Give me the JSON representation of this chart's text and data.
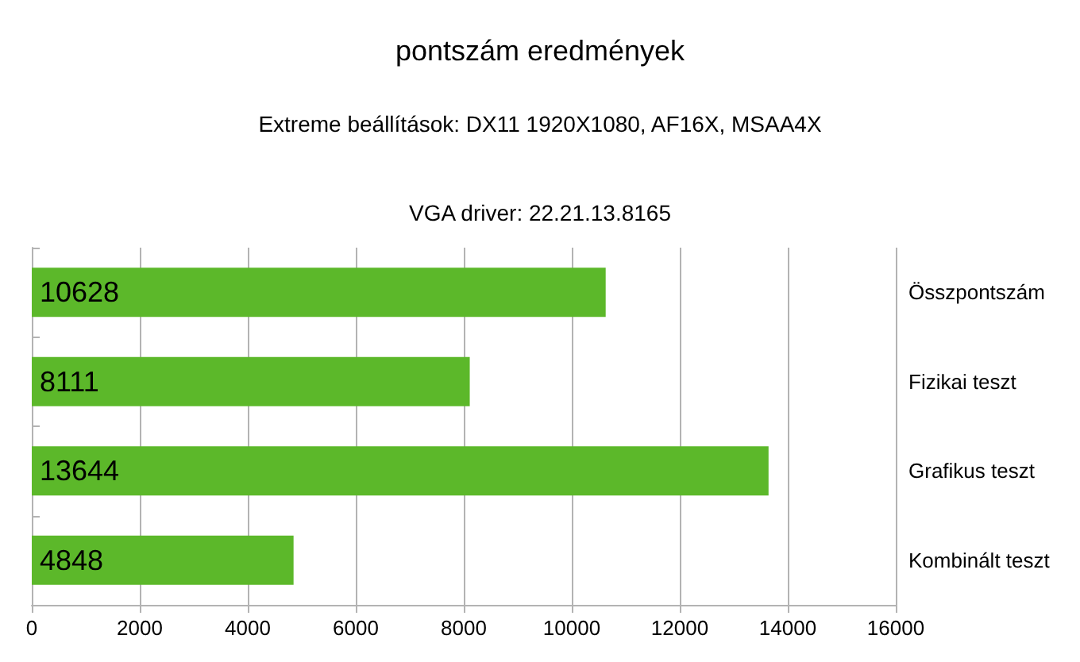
{
  "chart_data": {
    "type": "bar",
    "orientation": "horizontal",
    "title": "pontszám eredmények",
    "subtitle": "Extreme beállítások: DX11 1920X1080, AF16X, MSAA4X",
    "annotations": [
      "VGA driver: 22.21.13.8165"
    ],
    "categories": [
      "Összpontszám",
      "Fizikai teszt",
      "Grafikus teszt",
      "Kombinált teszt"
    ],
    "values": [
      10628,
      8111,
      13644,
      4848
    ],
    "color": "#5cb82a",
    "xlim": [
      0,
      16000
    ],
    "xticks": [
      0,
      2000,
      4000,
      6000,
      8000,
      10000,
      12000,
      14000,
      16000
    ],
    "grid": "x",
    "data_labels": true
  }
}
